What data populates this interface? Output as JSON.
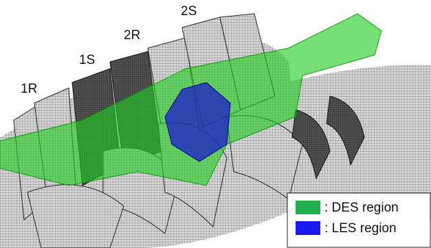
{
  "stage_labels": [
    "1R",
    "1S",
    "2R",
    "2S"
  ],
  "legend": [
    {
      "label": ": DES region"
    },
    {
      "label": ": LES region"
    }
  ]
}
